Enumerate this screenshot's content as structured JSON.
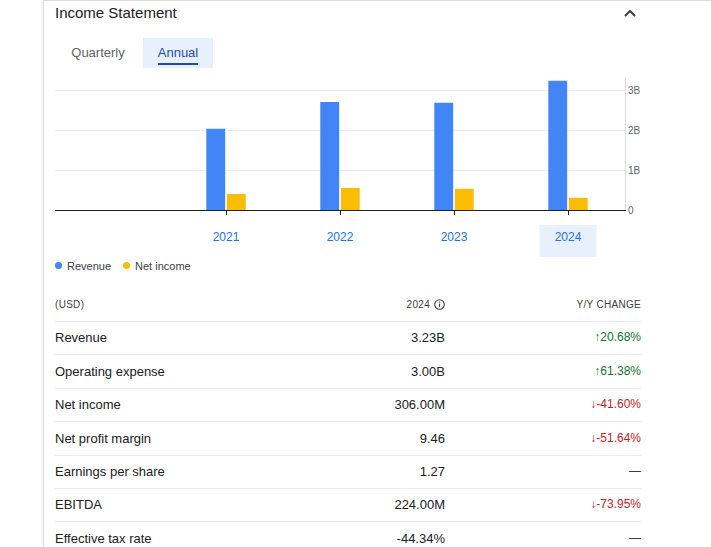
{
  "header": {
    "title": "Income Statement"
  },
  "tabs": [
    {
      "label": "Quarterly",
      "selected": false
    },
    {
      "label": "Annual",
      "selected": true
    }
  ],
  "chart_data": {
    "type": "bar",
    "x": [
      2021,
      2022,
      2023,
      2024
    ],
    "series": [
      {
        "name": "Revenue",
        "color": "#4285f4",
        "values": [
          2.03,
          2.7,
          2.68,
          3.23
        ]
      },
      {
        "name": "Net income",
        "color": "#fbbc04",
        "values": [
          0.4,
          0.55,
          0.53,
          0.306
        ]
      }
    ],
    "xlim": [
      2019.5,
      2024.5
    ],
    "xticks": [
      2021,
      2022,
      2023,
      2024
    ],
    "ylim": [
      0,
      3.3
    ],
    "yticks": [
      0,
      {
        "value": 1,
        "label": "1B"
      },
      {
        "value": 2,
        "label": "2B"
      },
      {
        "value": 3,
        "label": "3B"
      }
    ],
    "grid": true,
    "legend": "bottom"
  },
  "table": {
    "columns": [
      "(USD)",
      "2024",
      "Y/Y CHANGE"
    ],
    "rows": [
      {
        "label": "Revenue",
        "value": "3.23B",
        "change": "↑20.68%",
        "change_color": "#137333"
      },
      {
        "label": "Operating expense",
        "value": "3.00B",
        "change": "↑61.38%",
        "change_color": "#137333"
      },
      {
        "label": "Net income",
        "value": "306.00M",
        "change": "↓-41.60%",
        "change_color": "#c5221f"
      },
      {
        "label": "Net profit margin",
        "value": "9.46",
        "change": "↓-51.64%",
        "change_color": "#c5221f"
      },
      {
        "label": "Earnings per share",
        "value": "1.27",
        "change": "—",
        "change_color": "#3c4043"
      },
      {
        "label": "EBITDA",
        "value": "224.00M",
        "change": "↓-73.95%",
        "change_color": "#c5221f"
      },
      {
        "label": "Effective tax rate",
        "value": "-44.34%",
        "change": "—",
        "change_color": "#3c4043"
      }
    ]
  }
}
